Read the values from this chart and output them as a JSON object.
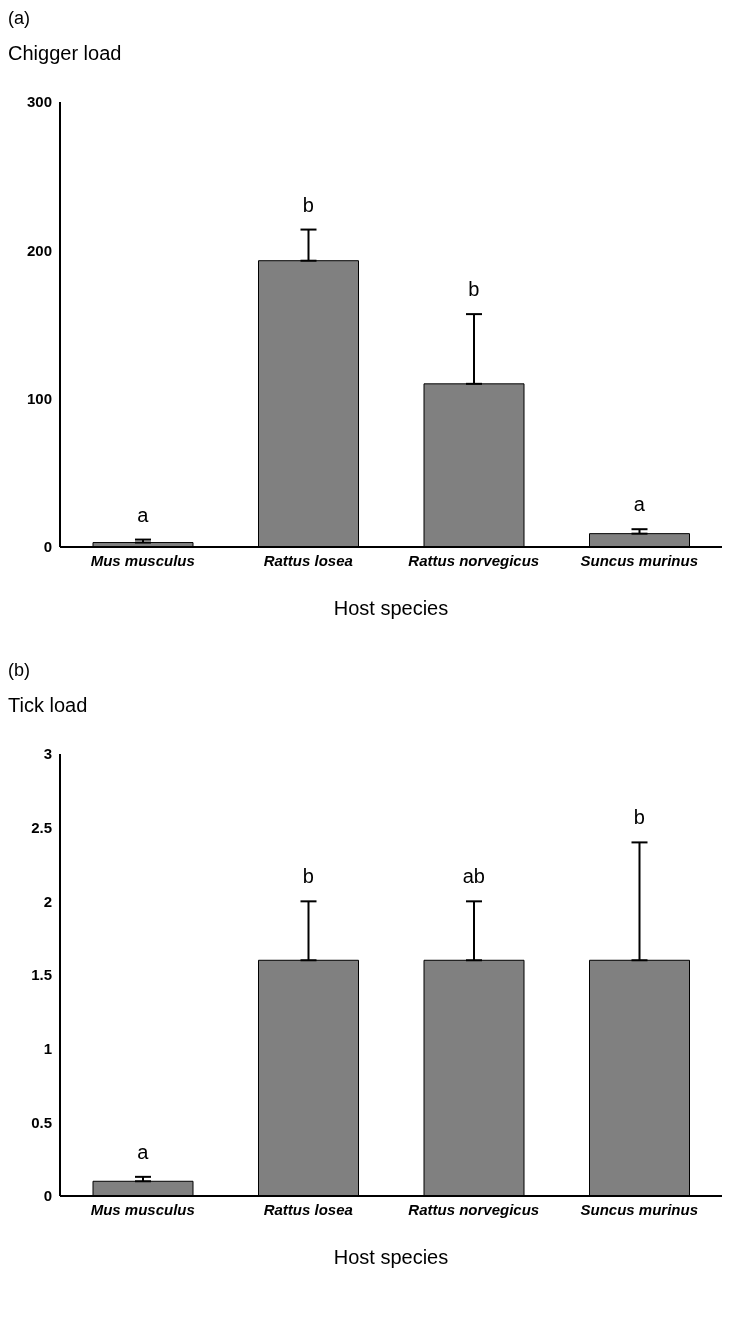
{
  "chart_data": [
    {
      "type": "bar",
      "title": "(a)",
      "ylabel": "Chigger load",
      "xlabel": "Host species",
      "categories": [
        "Mus musculus",
        "Rattus losea",
        "Rattus norvegicus",
        "Suncus murinus"
      ],
      "values": [
        3,
        193,
        110,
        9
      ],
      "errors": [
        [
          3,
          5
        ],
        [
          193,
          214
        ],
        [
          110,
          157
        ],
        [
          9,
          12
        ]
      ],
      "color": "#808080",
      "ylim": [
        0,
        300
      ],
      "yticks": [
        0,
        100,
        200,
        300
      ],
      "grid": false,
      "legend": false,
      "annotations": [
        "a",
        "b",
        "b",
        "a"
      ]
    },
    {
      "type": "bar",
      "title": "(b)",
      "ylabel": "Tick load",
      "xlabel": "Host species",
      "categories": [
        "Mus musculus",
        "Rattus losea",
        "Rattus norvegicus",
        "Suncus murinus"
      ],
      "values": [
        0.1,
        1.6,
        1.6,
        1.6
      ],
      "errors": [
        [
          0.1,
          0.13
        ],
        [
          1.6,
          2
        ],
        [
          1.6,
          2
        ],
        [
          1.6,
          2.4
        ]
      ],
      "color": "#808080",
      "ylim": [
        0,
        3
      ],
      "yticks": [
        0,
        0.5,
        1,
        1.5,
        2,
        2.5,
        3
      ],
      "grid": false,
      "legend": false,
      "annotations": [
        "a",
        "b",
        "ab",
        "b"
      ]
    }
  ]
}
